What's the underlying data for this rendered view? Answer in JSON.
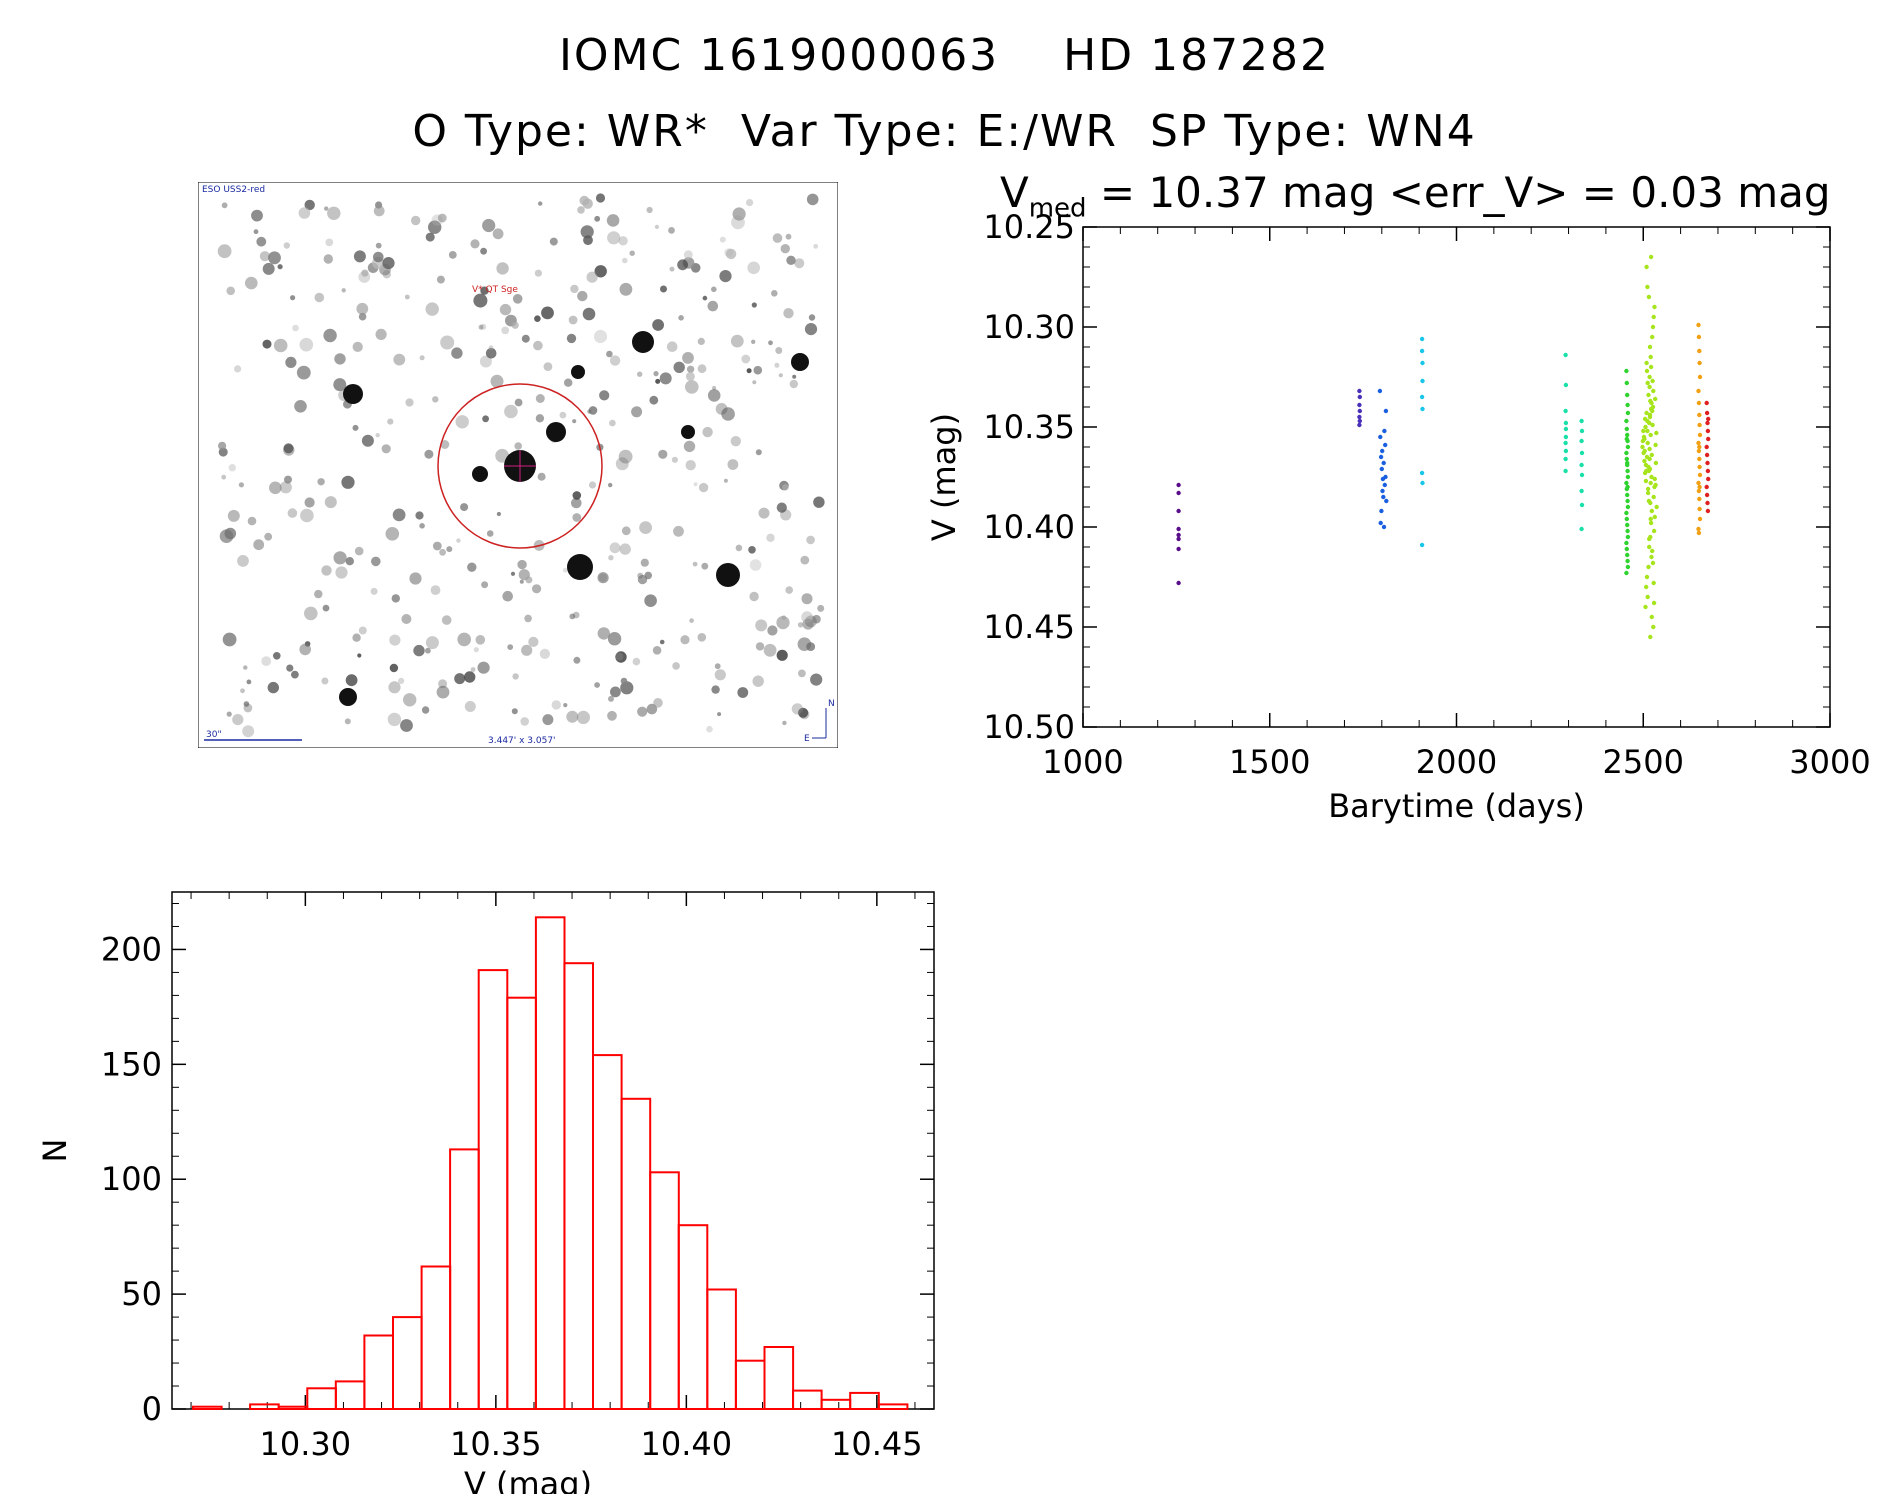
{
  "header": {
    "title_line1": "IOMC 1619000063    HD 187282",
    "title_line2": "O Type: WR*  Var Type: E:/WR  SP Type: WN4"
  },
  "finder_chart": {
    "survey_label": "ESO USS2-red",
    "target_label": "V* QT Sge",
    "scale_label": "30\"",
    "fov_label": "3.447' x 3.057'",
    "north_label": "N",
    "east_label": "E",
    "circle_color": "#cc2222"
  },
  "chart_data": [
    {
      "type": "scatter",
      "title": "V_med = 10.37 mag <err_V> = 0.03 mag",
      "title_parts": {
        "v": "V",
        "med": "med",
        "rest": " = 10.37 mag <err_V> = 0.03 mag"
      },
      "xlabel": "Barytime (days)",
      "ylabel": "V (mag)",
      "xlim": [
        1000,
        3000
      ],
      "ylim": [
        10.5,
        10.25
      ],
      "y_inverted": true,
      "xticks": [
        "1000",
        "1500",
        "2000",
        "2500",
        "3000"
      ],
      "yticks": [
        "10.25",
        "10.30",
        "10.35",
        "10.40",
        "10.45",
        "10.50"
      ],
      "series": [
        {
          "name": "g1",
          "color": "#5a0d8a",
          "x": [
            1256,
            1256,
            1256,
            1256,
            1256,
            1256,
            1256,
            1256
          ],
          "y": [
            10.379,
            10.383,
            10.392,
            10.401,
            10.404,
            10.406,
            10.411,
            10.428
          ]
        },
        {
          "name": "g2",
          "color": "#4a2fb8",
          "x": [
            1740,
            1741,
            1740,
            1741,
            1740,
            1741,
            1740
          ],
          "y": [
            10.332,
            10.335,
            10.339,
            10.342,
            10.345,
            10.347,
            10.349
          ]
        },
        {
          "name": "g3",
          "color": "#1a5fe0",
          "x": [
            1795,
            1796,
            1797,
            1798,
            1799,
            1800,
            1801,
            1802,
            1803,
            1804,
            1805,
            1806,
            1807,
            1808,
            1809,
            1810,
            1811,
            1812
          ],
          "y": [
            10.332,
            10.355,
            10.398,
            10.365,
            10.392,
            10.371,
            10.362,
            10.382,
            10.376,
            10.385,
            10.368,
            10.4,
            10.352,
            10.379,
            10.359,
            10.375,
            10.342,
            10.387
          ]
        },
        {
          "name": "g4",
          "color": "#19c6ea",
          "x": [
            1908,
            1908,
            1909,
            1909,
            1908,
            1909,
            1908,
            1909,
            1908
          ],
          "y": [
            10.306,
            10.312,
            10.318,
            10.327,
            10.335,
            10.341,
            10.373,
            10.378,
            10.409
          ]
        },
        {
          "name": "g5",
          "color": "#19e0a8",
          "x": [
            2292,
            2293,
            2292,
            2293,
            2292,
            2293,
            2292,
            2293,
            2292,
            2293,
            2335,
            2336,
            2335,
            2336,
            2335,
            2336,
            2335,
            2336,
            2335
          ],
          "y": [
            10.314,
            10.329,
            10.342,
            10.351,
            10.358,
            10.362,
            10.366,
            10.348,
            10.372,
            10.355,
            10.347,
            10.352,
            10.357,
            10.363,
            10.369,
            10.374,
            10.382,
            10.389,
            10.401
          ]
        },
        {
          "name": "g6",
          "color": "#2fd32f",
          "x": [
            2455,
            2456,
            2457,
            2458,
            2459,
            2455,
            2456,
            2457,
            2458,
            2459,
            2455,
            2456,
            2457,
            2458,
            2459,
            2455,
            2456,
            2457,
            2458,
            2459,
            2455,
            2456,
            2457,
            2458,
            2459,
            2455,
            2456,
            2457,
            2458,
            2459,
            2455,
            2456,
            2457,
            2458
          ],
          "y": [
            10.322,
            10.328,
            10.334,
            10.339,
            10.343,
            10.347,
            10.351,
            10.354,
            10.357,
            10.36,
            10.363,
            10.366,
            10.369,
            10.372,
            10.375,
            10.378,
            10.381,
            10.384,
            10.387,
            10.39,
            10.393,
            10.396,
            10.399,
            10.402,
            10.405,
            10.408,
            10.411,
            10.414,
            10.417,
            10.42,
            10.423,
            10.356,
            10.368,
            10.38
          ]
        },
        {
          "name": "g7",
          "color": "#a6e41c",
          "x": [
            2498,
            2502,
            2506,
            2510,
            2514,
            2518,
            2522,
            2526,
            2530,
            2534,
            2500,
            2504,
            2508,
            2512,
            2516,
            2520,
            2524,
            2528,
            2532,
            2536,
            2499,
            2503,
            2507,
            2511,
            2515,
            2519,
            2523,
            2527,
            2531,
            2535,
            2501,
            2505,
            2509,
            2513,
            2517,
            2521,
            2525,
            2529,
            2533,
            2517,
            2519,
            2521,
            2516,
            2520,
            2522,
            2518,
            2514,
            2524,
            2510,
            2526,
            2508,
            2528,
            2512,
            2530,
            2506,
            2515,
            2523,
            2511,
            2527,
            2509,
            2519,
            2521,
            2513,
            2525,
            2507,
            2517,
            2503,
            2531,
            2518,
            2520,
            2522,
            2516,
            2514,
            2524,
            2512,
            2526,
            2510,
            2528,
            2509,
            2529,
            2511,
            2515,
            2523,
            2505,
            2533,
            2519,
            2521,
            2517,
            2520,
            2518
          ],
          "y": [
            10.36,
            10.355,
            10.35,
            10.365,
            10.37,
            10.345,
            10.375,
            10.34,
            10.38,
            10.368,
            10.352,
            10.362,
            10.372,
            10.358,
            10.348,
            10.378,
            10.342,
            10.385,
            10.336,
            10.39,
            10.357,
            10.367,
            10.377,
            10.347,
            10.387,
            10.337,
            10.392,
            10.332,
            10.395,
            10.353,
            10.363,
            10.373,
            10.343,
            10.383,
            10.33,
            10.398,
            10.327,
            10.402,
            10.359,
            10.325,
            10.405,
            10.32,
            10.41,
            10.315,
            10.415,
            10.31,
            10.42,
            10.305,
            10.425,
            10.3,
            10.43,
            10.295,
            10.435,
            10.29,
            10.44,
            10.285,
            10.445,
            10.28,
            10.45,
            10.27,
            10.455,
            10.265,
            10.381,
            10.349,
            10.369,
            10.361,
            10.356,
            10.376,
            10.344,
            10.396,
            10.338,
            10.406,
            10.334,
            10.412,
            10.328,
            10.418,
            10.322,
            10.428,
            10.318,
            10.438,
            10.352,
            10.372,
            10.364,
            10.346,
            10.379,
            10.388,
            10.341,
            10.366,
            10.354,
            10.371
          ]
        },
        {
          "name": "g8",
          "color": "#f0a012",
          "x": [
            2648,
            2649,
            2650,
            2651,
            2652,
            2648,
            2649,
            2650,
            2651,
            2652,
            2648,
            2649,
            2650,
            2651,
            2652,
            2648,
            2649,
            2650,
            2651,
            2652,
            2648,
            2649,
            2650,
            2651
          ],
          "y": [
            10.299,
            10.305,
            10.312,
            10.318,
            10.325,
            10.332,
            10.338,
            10.344,
            10.349,
            10.354,
            10.358,
            10.362,
            10.366,
            10.37,
            10.374,
            10.378,
            10.382,
            10.386,
            10.391,
            10.396,
            10.401,
            10.403,
            10.36,
            10.38
          ]
        },
        {
          "name": "g9",
          "color": "#e02020",
          "x": [
            2670,
            2671,
            2672,
            2673,
            2674,
            2670,
            2671,
            2672,
            2673,
            2674,
            2670,
            2671,
            2672,
            2673,
            2674
          ],
          "y": [
            10.338,
            10.343,
            10.348,
            10.352,
            10.356,
            10.36,
            10.364,
            10.368,
            10.372,
            10.376,
            10.38,
            10.384,
            10.388,
            10.392,
            10.346
          ]
        }
      ]
    },
    {
      "type": "bar",
      "xlabel": "V (mag)",
      "ylabel": "N",
      "xlim": [
        10.265,
        10.465
      ],
      "ylim": [
        0,
        225
      ],
      "xticks": [
        "10.30",
        "10.35",
        "10.40",
        "10.45"
      ],
      "yticks": [
        "0",
        "50",
        "100",
        "150",
        "200"
      ],
      "bar_color": "#ff0000",
      "bin_width": 0.0075,
      "bin_starts": [
        10.2705,
        10.278,
        10.2855,
        10.293,
        10.3005,
        10.308,
        10.3155,
        10.323,
        10.3305,
        10.338,
        10.3455,
        10.353,
        10.3605,
        10.368,
        10.3755,
        10.383,
        10.3905,
        10.398,
        10.4055,
        10.413,
        10.4205,
        10.428,
        10.4355,
        10.443,
        10.4505
      ],
      "values": [
        1,
        0,
        2,
        1,
        9,
        12,
        32,
        40,
        62,
        113,
        191,
        179,
        214,
        194,
        154,
        135,
        103,
        80,
        52,
        21,
        27,
        8,
        4,
        7,
        2
      ]
    }
  ]
}
